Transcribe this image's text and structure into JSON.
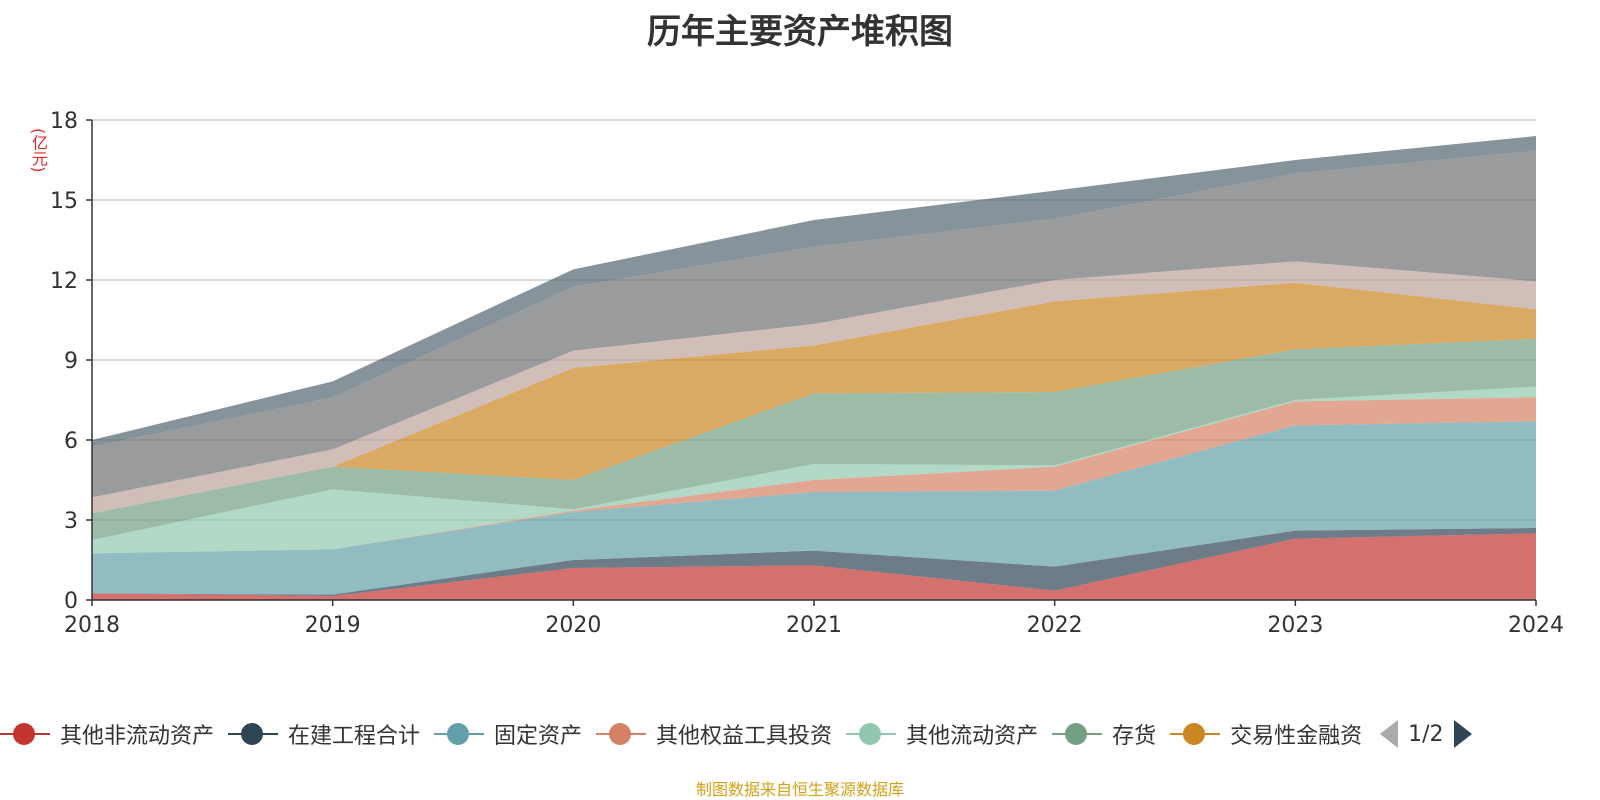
{
  "title": "历年主要资产堆积图",
  "unit": "(亿元)",
  "source": "制图数据来自恒生聚源数据库",
  "pager": {
    "text": "1/2"
  },
  "legend": [
    {
      "name": "其他非流动资产",
      "color": "#c23531"
    },
    {
      "name": "在建工程合计",
      "color": "#2f4554"
    },
    {
      "name": "固定资产",
      "color": "#61a0a8"
    },
    {
      "name": "其他权益工具投资",
      "color": "#d48265"
    },
    {
      "name": "其他流动资产",
      "color": "#91c7ae"
    },
    {
      "name": "存货",
      "color": "#749f83"
    },
    {
      "name": "交易性金融资",
      "color": "#ca8622"
    }
  ],
  "chart_data": {
    "type": "area",
    "stacked": true,
    "x": [
      "2018",
      "2019",
      "2020",
      "2021",
      "2022",
      "2023",
      "2024"
    ],
    "ylim": [
      0,
      18
    ],
    "yticks": [
      0,
      3,
      6,
      9,
      12,
      15,
      18
    ],
    "grid": true,
    "series": [
      {
        "name": "其他非流动资产",
        "color": "#c23531",
        "values": [
          0.25,
          0.15,
          1.2,
          1.3,
          0.35,
          2.3,
          2.5
        ]
      },
      {
        "name": "在建工程合计",
        "color": "#2f4554",
        "values": [
          0.0,
          0.05,
          0.3,
          0.55,
          0.9,
          0.3,
          0.2
        ]
      },
      {
        "name": "固定资产",
        "color": "#61a0a8",
        "values": [
          1.5,
          1.7,
          1.8,
          2.2,
          2.85,
          3.95,
          4.0
        ]
      },
      {
        "name": "其他权益工具投资",
        "color": "#d48265",
        "values": [
          0.0,
          0.0,
          0.05,
          0.45,
          0.9,
          0.9,
          0.9
        ]
      },
      {
        "name": "其他流动资产",
        "color": "#91c7ae",
        "values": [
          0.5,
          2.25,
          0.05,
          0.6,
          0.05,
          0.05,
          0.4
        ]
      },
      {
        "name": "存货",
        "color": "#749f83",
        "values": [
          1.0,
          0.85,
          1.1,
          2.65,
          2.75,
          1.9,
          1.8
        ]
      },
      {
        "name": "交易性金融资",
        "color": "#ca8622",
        "values": [
          0.0,
          0.0,
          4.2,
          1.8,
          3.4,
          2.5,
          1.1
        ]
      },
      {
        "name": "",
        "color": "#bda29a",
        "values": [
          0.6,
          0.65,
          0.65,
          0.8,
          0.8,
          0.8,
          1.05
        ]
      },
      {
        "name": "",
        "color": "#6e7074",
        "values": [
          1.9,
          1.95,
          2.4,
          2.9,
          2.3,
          3.3,
          4.9
        ]
      },
      {
        "name": "",
        "color": "#546570",
        "values": [
          0.25,
          0.6,
          0.65,
          1.0,
          1.05,
          0.5,
          0.55
        ]
      }
    ]
  }
}
